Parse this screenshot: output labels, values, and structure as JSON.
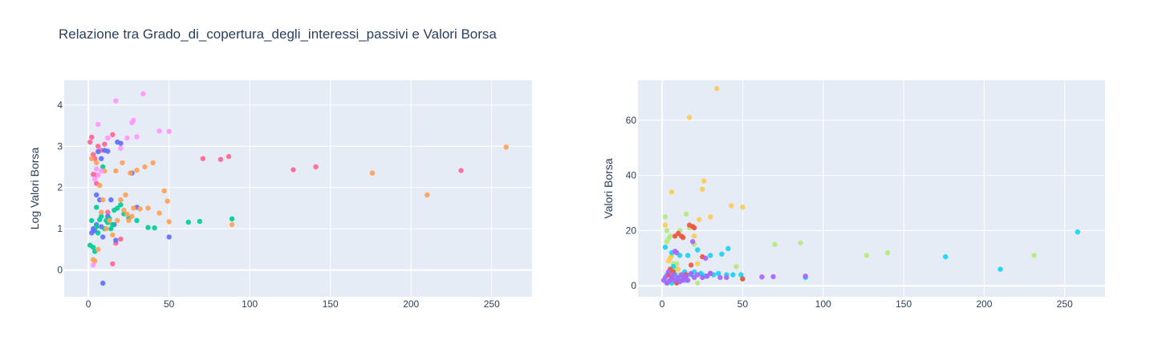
{
  "title": "Relazione tra Grado_di_copertura_degli_interessi_passivi e Valori Borsa",
  "colors": {
    "plot_bg": "#e5ecf6",
    "grid": "#ffffff",
    "text": "#2a3f5f",
    "palette_left": [
      "#ef553b",
      "#636efa",
      "#00cc96",
      "#ab63fa",
      "#ffa15a",
      "#19d3f3",
      "#ff6692",
      "#b6e880",
      "#ff97ff",
      "#fecb52"
    ],
    "palette_right": [
      "#ef553b",
      "#636efa",
      "#00cc96",
      "#ab63fa",
      "#ffa15a",
      "#19d3f3",
      "#ff6692",
      "#b6e880",
      "#ff97ff",
      "#fecb52"
    ]
  },
  "chart_data": [
    {
      "type": "scatter",
      "title": "",
      "xlabel": "",
      "ylabel": "Log Valori Borsa",
      "xlim": [
        -15,
        275
      ],
      "ylim": [
        -0.65,
        4.6
      ],
      "xticks": [
        "0",
        "50",
        "100",
        "150",
        "200",
        "250"
      ],
      "yticks": [
        "0",
        "1",
        "2",
        "3",
        "4"
      ],
      "grid": true,
      "series": [
        {
          "color": "#ff6692",
          "x": [
            1,
            2,
            3,
            4,
            5,
            6,
            8,
            10,
            12,
            15,
            17,
            20,
            71,
            82,
            87,
            127,
            141,
            231,
            15,
            3,
            5
          ],
          "y": [
            3.1,
            3.22,
            2.8,
            2.7,
            2.3,
            3.0,
            2.9,
            3.05,
            1.4,
            3.28,
            0.65,
            0.75,
            2.7,
            2.68,
            2.75,
            2.43,
            2.5,
            2.41,
            0.15,
            2.32,
            2.1
          ]
        },
        {
          "color": "#636efa",
          "x": [
            2,
            3,
            4,
            5,
            6,
            7,
            8,
            9,
            10,
            12,
            14,
            16,
            18,
            20,
            27,
            30,
            50,
            8,
            9,
            5,
            12,
            17
          ],
          "y": [
            0.9,
            1.0,
            0.95,
            1.1,
            2.87,
            1.7,
            1.05,
            0.8,
            2.9,
            2.88,
            1.7,
            1.1,
            3.1,
            3.07,
            2.35,
            1.52,
            0.8,
            2.7,
            -0.32,
            1.82,
            1.3,
            0.72
          ]
        },
        {
          "color": "#00cc96",
          "x": [
            1,
            2,
            3,
            4,
            5,
            6,
            7,
            8,
            9,
            10,
            11,
            12,
            13,
            14,
            15,
            16,
            18,
            20,
            22,
            25,
            30,
            37,
            41,
            62,
            69,
            89,
            5
          ],
          "y": [
            0.6,
            1.2,
            0.55,
            0.45,
            1.05,
            0.9,
            1.22,
            1.3,
            2.5,
            1.0,
            1.2,
            1.15,
            1.25,
            1.0,
            1.1,
            1.45,
            1.5,
            1.58,
            1.36,
            1.26,
            1.2,
            1.03,
            1.02,
            1.16,
            1.18,
            1.24,
            1.52
          ]
        },
        {
          "color": "#ffa15a",
          "x": [
            2,
            3,
            4,
            5,
            6,
            7,
            8,
            9,
            10,
            11,
            13,
            15,
            17,
            18,
            20,
            21,
            22,
            23,
            24,
            25,
            26,
            27,
            28,
            30,
            32,
            35,
            37,
            40,
            44,
            47,
            49,
            50,
            89,
            176,
            210,
            259
          ],
          "y": [
            2.7,
            0.25,
            0.22,
            2.6,
            0.5,
            2.05,
            1.4,
            1.7,
            2.4,
            1.0,
            1.2,
            0.85,
            2.4,
            1.2,
            1.7,
            2.6,
            1.45,
            1.82,
            1.35,
            1.2,
            2.35,
            1.3,
            1.5,
            2.42,
            1.48,
            2.5,
            1.5,
            2.6,
            1.38,
            1.92,
            1.67,
            1.17,
            1.1,
            2.35,
            1.82,
            2.98
          ]
        },
        {
          "color": "#ff97ff",
          "x": [
            3,
            4,
            5,
            6,
            8,
            12,
            17,
            20,
            24,
            27,
            28,
            30,
            34,
            44,
            50,
            6
          ],
          "y": [
            0.12,
            2.2,
            2.45,
            3.53,
            2.4,
            3.2,
            4.1,
            2.95,
            3.2,
            3.57,
            3.63,
            3.23,
            4.27,
            3.37,
            3.36,
            2.3
          ]
        }
      ]
    },
    {
      "type": "scatter",
      "title": "",
      "xlabel": "",
      "ylabel": "Valori Borsa",
      "xlim": [
        -15,
        275
      ],
      "ylim": [
        -4,
        74.5
      ],
      "xticks": [
        "0",
        "50",
        "100",
        "150",
        "200",
        "250"
      ],
      "yticks": [
        "0",
        "20",
        "40",
        "60"
      ],
      "grid": true,
      "series": [
        {
          "color": "#fecb52",
          "x": [
            2,
            4,
            5,
            6,
            6,
            8,
            10,
            13,
            17,
            20,
            22,
            23,
            25,
            26,
            30,
            34,
            43,
            50
          ],
          "y": [
            22,
            9,
            10,
            11,
            34,
            7,
            6,
            4,
            61,
            18,
            8,
            24,
            35,
            38,
            25,
            71.5,
            29,
            28.5
          ]
        },
        {
          "color": "#b6e880",
          "x": [
            1,
            2,
            3,
            4,
            5,
            6,
            7,
            8,
            10,
            11,
            13,
            15,
            17,
            20,
            22,
            46,
            70,
            86,
            127,
            140,
            231,
            3,
            9
          ],
          "y": [
            2,
            25,
            16,
            17,
            18,
            5,
            8,
            6,
            4,
            20,
            3,
            26,
            21,
            15,
            1,
            7,
            15,
            15.5,
            11,
            12,
            11,
            20,
            8
          ]
        },
        {
          "color": "#19d3f3",
          "x": [
            2,
            3,
            4,
            5,
            6,
            7,
            8,
            9,
            10,
            11,
            12,
            13,
            14,
            15,
            16,
            18,
            20,
            22,
            24,
            25,
            27,
            30,
            32,
            35,
            37,
            40,
            41,
            44,
            49,
            50,
            89,
            176,
            210,
            258,
            6,
            3
          ],
          "y": [
            14,
            1,
            1.5,
            2,
            1,
            7,
            4,
            3,
            1.5,
            11,
            2,
            3,
            5,
            2,
            11,
            4,
            5,
            13,
            4.5,
            4,
            3.5,
            11,
            4,
            4.5,
            11.5,
            4,
            13.5,
            4,
            4,
            2.5,
            3,
            10.5,
            6,
            19.5,
            12,
            4
          ]
        },
        {
          "color": "#ef553b",
          "x": [
            4,
            5,
            6,
            7,
            8,
            9,
            10,
            12,
            13,
            15,
            17,
            18,
            19,
            20,
            25,
            30,
            50
          ],
          "y": [
            4,
            6,
            3,
            5,
            18,
            1,
            19,
            18,
            17.5,
            4,
            22,
            7.5,
            21.5,
            21,
            10.5,
            4.5,
            2.5
          ]
        },
        {
          "color": "#ab63fa",
          "x": [
            1,
            2,
            3,
            4,
            5,
            6,
            7,
            8,
            9,
            10,
            11,
            12,
            13,
            14,
            15,
            16,
            18,
            19,
            20,
            22,
            25,
            27,
            28,
            30,
            36,
            40,
            62,
            69,
            89,
            8
          ],
          "y": [
            2,
            3,
            1,
            5,
            2,
            3,
            4,
            2,
            12,
            3,
            1.5,
            4,
            2,
            3,
            3.5,
            2,
            4.5,
            16,
            3,
            4,
            3,
            10,
            3.5,
            4.5,
            3,
            3,
            3.2,
            3.3,
            3.5,
            12.5
          ]
        }
      ]
    }
  ]
}
